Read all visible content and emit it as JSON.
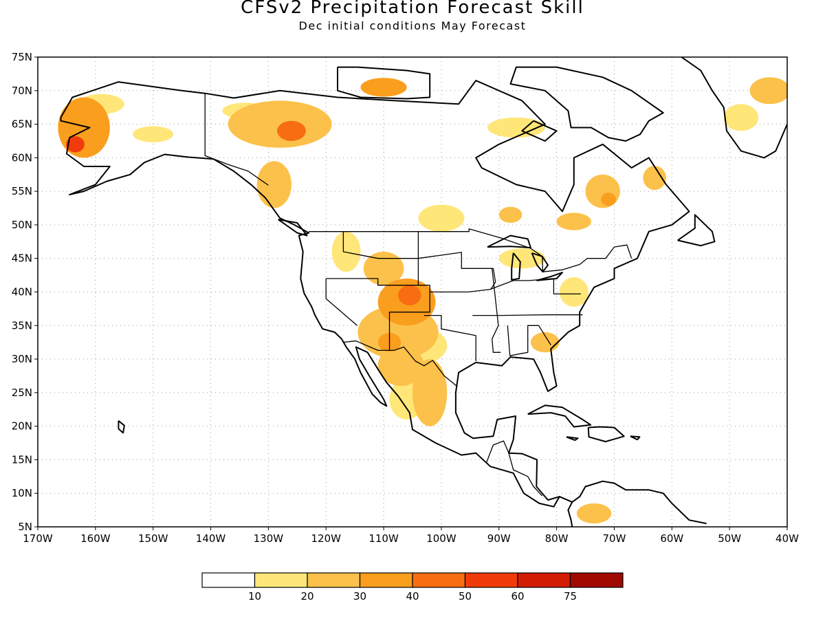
{
  "title": "CFSv2 Precipitation Forecast Skill",
  "subtitle": "Dec initial conditions   May Forecast",
  "axes": {
    "lon_labels": [
      "170W",
      "160W",
      "150W",
      "140W",
      "130W",
      "120W",
      "110W",
      "100W",
      "90W",
      "80W",
      "70W",
      "60W",
      "50W",
      "40W"
    ],
    "lon_values": [
      -170,
      -160,
      -150,
      -140,
      -130,
      -120,
      -110,
      -100,
      -90,
      -80,
      -70,
      -60,
      -50,
      -40
    ],
    "lat_labels": [
      "5N",
      "10N",
      "15N",
      "20N",
      "25N",
      "30N",
      "35N",
      "40N",
      "45N",
      "50N",
      "55N",
      "60N",
      "65N",
      "70N",
      "75N"
    ],
    "lat_values": [
      5,
      10,
      15,
      20,
      25,
      30,
      35,
      40,
      45,
      50,
      55,
      60,
      65,
      70,
      75
    ],
    "lon_range": [
      -170,
      -40
    ],
    "lat_range": [
      5,
      75
    ],
    "grid": "dotted"
  },
  "colorbar": {
    "colors": [
      "#ffffff",
      "#ffe678",
      "#fcc14a",
      "#fa9e1e",
      "#f86d12",
      "#f03c0a",
      "#d21c04",
      "#a00a00"
    ],
    "labels": [
      "10",
      "20",
      "30",
      "40",
      "50",
      "60",
      "75"
    ]
  },
  "skill_regions": [
    {
      "name": "alaska-west",
      "lon": -162,
      "lat": 64.5,
      "rx": 4.5,
      "ry": 4.5,
      "level": 3
    },
    {
      "name": "alaska-west-core",
      "lon": -163.5,
      "lat": 62,
      "rx": 1.6,
      "ry": 1.2,
      "level": 5
    },
    {
      "name": "alaska-north",
      "lon": -159,
      "lat": 68,
      "rx": 4,
      "ry": 1.5,
      "level": 1
    },
    {
      "name": "alaska-central",
      "lon": -150,
      "lat": 63.5,
      "rx": 3.5,
      "ry": 1.2,
      "level": 1
    },
    {
      "name": "yukon",
      "lon": -128,
      "lat": 65,
      "rx": 9,
      "ry": 3.5,
      "level": 2
    },
    {
      "name": "yukon-core",
      "lon": -126,
      "lat": 64,
      "rx": 2.5,
      "ry": 1.5,
      "level": 4
    },
    {
      "name": "yukon-north",
      "lon": -134,
      "lat": 67,
      "rx": 4,
      "ry": 1.2,
      "level": 1
    },
    {
      "name": "canada-arctic",
      "lon": -110,
      "lat": 70.5,
      "rx": 4,
      "ry": 1.4,
      "level": 3
    },
    {
      "name": "bc-coast",
      "lon": -129,
      "lat": 56,
      "rx": 3,
      "ry": 3.5,
      "level": 2
    },
    {
      "name": "hudson-west",
      "lon": -100,
      "lat": 51,
      "rx": 4,
      "ry": 2,
      "level": 1
    },
    {
      "name": "ontario-north",
      "lon": -88,
      "lat": 51.5,
      "rx": 2,
      "ry": 1.2,
      "level": 2
    },
    {
      "name": "quebec",
      "lon": -72,
      "lat": 55,
      "rx": 3,
      "ry": 2.5,
      "level": 2
    },
    {
      "name": "quebec-core",
      "lon": -71,
      "lat": 53.8,
      "rx": 1.3,
      "ry": 1,
      "level": 3
    },
    {
      "name": "labrador",
      "lon": -63,
      "lat": 57,
      "rx": 2,
      "ry": 1.8,
      "level": 2
    },
    {
      "name": "quebec-south",
      "lon": -77,
      "lat": 50.5,
      "rx": 3,
      "ry": 1.3,
      "level": 2
    },
    {
      "name": "baffin",
      "lon": -87,
      "lat": 64.5,
      "rx": 5,
      "ry": 1.5,
      "level": 1
    },
    {
      "name": "great-basin",
      "lon": -116.5,
      "lat": 46,
      "rx": 2.5,
      "ry": 3,
      "level": 1
    },
    {
      "name": "idaho",
      "lon": -110,
      "lat": 43.5,
      "rx": 3.5,
      "ry": 2.5,
      "level": 2
    },
    {
      "name": "colorado",
      "lon": -106,
      "lat": 38.5,
      "rx": 5,
      "ry": 3.5,
      "level": 3
    },
    {
      "name": "colorado-core",
      "lon": -105.5,
      "lat": 39.5,
      "rx": 2,
      "ry": 1.5,
      "level": 4
    },
    {
      "name": "new-mexico",
      "lon": -107.5,
      "lat": 34,
      "rx": 7,
      "ry": 4,
      "level": 2
    },
    {
      "name": "arizona-core",
      "lon": -109,
      "lat": 32.5,
      "rx": 2,
      "ry": 1.4,
      "level": 3
    },
    {
      "name": "texas-west",
      "lon": -103,
      "lat": 32,
      "rx": 4,
      "ry": 2.5,
      "level": 1
    },
    {
      "name": "mexico-north",
      "lon": -107,
      "lat": 29,
      "rx": 4,
      "ry": 3,
      "level": 2
    },
    {
      "name": "mexico-east",
      "lon": -102,
      "lat": 25,
      "rx": 3,
      "ry": 5,
      "level": 2
    },
    {
      "name": "mexico-central",
      "lon": -106,
      "lat": 24,
      "rx": 3,
      "ry": 3,
      "level": 1
    },
    {
      "name": "great-lakes",
      "lon": -86,
      "lat": 45,
      "rx": 4,
      "ry": 1.5,
      "level": 1
    },
    {
      "name": "mid-atlantic",
      "lon": -77,
      "lat": 40,
      "rx": 2.5,
      "ry": 2.2,
      "level": 1
    },
    {
      "name": "georgia",
      "lon": -82,
      "lat": 32.5,
      "rx": 2.5,
      "ry": 1.5,
      "level": 2
    },
    {
      "name": "greenland-east",
      "lon": -43,
      "lat": 70,
      "rx": 3.5,
      "ry": 2,
      "level": 2
    },
    {
      "name": "greenland-south",
      "lon": -48,
      "lat": 66,
      "rx": 3,
      "ry": 2,
      "level": 1
    },
    {
      "name": "colombia",
      "lon": -73.5,
      "lat": 7,
      "rx": 3,
      "ry": 1.5,
      "level": 2
    }
  ]
}
